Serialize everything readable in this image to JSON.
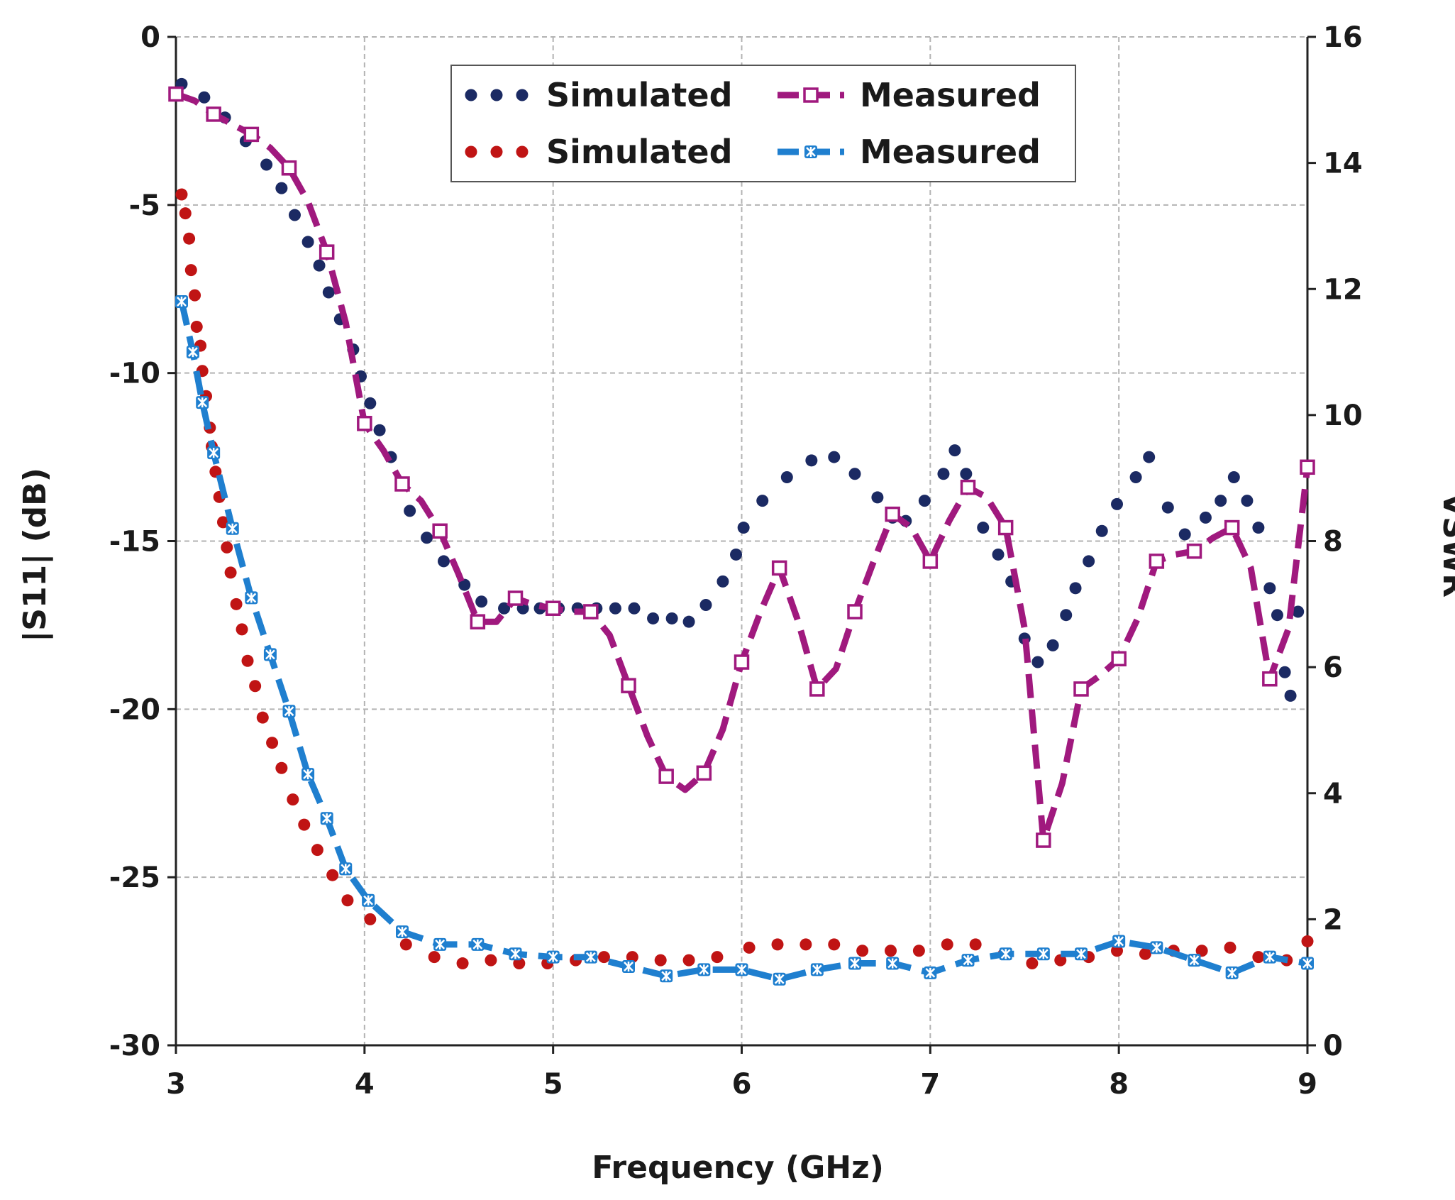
{
  "chart_data": {
    "type": "line",
    "title": "",
    "xlabel": "Frequency (GHz)",
    "ylabel": "|S11| (dB)",
    "y2label": "VSWR",
    "xlim": [
      3,
      9
    ],
    "ylim": [
      -30,
      0
    ],
    "y2lim": [
      0,
      16
    ],
    "xticks": [
      "3",
      "4",
      "5",
      "6",
      "7",
      "8",
      "9"
    ],
    "yticks": [
      "0",
      "-5",
      "-10",
      "-15",
      "-20",
      "-25",
      "-30"
    ],
    "y2ticks": [
      "16",
      "14",
      "12",
      "10",
      "8",
      "6",
      "4",
      "2",
      "0"
    ],
    "grid": true,
    "legend_position": "top-center",
    "series": [
      {
        "name": "Simulated",
        "axis": "left",
        "style": "dots",
        "color": "#1b2a63",
        "x": [
          3.03,
          3.15,
          3.26,
          3.37,
          3.48,
          3.56,
          3.63,
          3.7,
          3.76,
          3.81,
          3.87,
          3.94,
          3.98,
          4.03,
          4.08,
          4.14,
          4.24,
          4.33,
          4.42,
          4.53,
          4.62,
          4.74,
          4.84,
          4.93,
          5.03,
          5.13,
          5.23,
          5.33,
          5.43,
          5.53,
          5.63,
          5.72,
          5.81,
          5.9,
          5.97,
          6.01,
          6.11,
          6.24,
          6.37,
          6.49,
          6.6,
          6.72,
          6.8,
          6.87,
          6.97,
          7.07,
          7.13,
          7.19,
          7.28,
          7.36,
          7.43,
          7.5,
          7.57,
          7.65,
          7.72,
          7.77,
          7.84,
          7.91,
          7.99,
          8.09,
          8.16,
          8.26,
          8.35,
          8.46,
          8.54,
          8.61,
          8.68,
          8.74,
          8.8,
          8.84,
          8.88,
          8.91,
          8.95
        ],
        "y": [
          -1.4,
          -1.8,
          -2.4,
          -3.1,
          -3.8,
          -4.5,
          -5.3,
          -6.1,
          -6.8,
          -7.6,
          -8.4,
          -9.3,
          -10.1,
          -10.9,
          -11.7,
          -12.5,
          -14.1,
          -14.9,
          -15.6,
          -16.3,
          -16.8,
          -17.0,
          -17.0,
          -17.0,
          -17.0,
          -17.0,
          -17.0,
          -17.0,
          -17.0,
          -17.3,
          -17.3,
          -17.4,
          -16.9,
          -16.2,
          -15.4,
          -14.6,
          -13.8,
          -13.1,
          -12.6,
          -12.5,
          -13.0,
          -13.7,
          -14.3,
          -14.4,
          -13.8,
          -13.0,
          -12.3,
          -13.0,
          -14.6,
          -15.4,
          -16.2,
          -17.9,
          -18.6,
          -18.1,
          -17.2,
          -16.4,
          -15.6,
          -14.7,
          -13.9,
          -13.1,
          -12.5,
          -14.0,
          -14.8,
          -14.3,
          -13.8,
          -13.1,
          -13.8,
          -14.6,
          -16.4,
          -17.2,
          -18.9,
          -19.6,
          -17.1
        ]
      },
      {
        "name": "Measured",
        "axis": "left",
        "style": "dashed-square",
        "color": "#a0197e",
        "x": [
          3.0,
          3.1,
          3.2,
          3.3,
          3.4,
          3.5,
          3.6,
          3.7,
          3.8,
          3.9,
          4.0,
          4.1,
          4.2,
          4.3,
          4.4,
          4.5,
          4.6,
          4.7,
          4.8,
          4.9,
          5.0,
          5.1,
          5.2,
          5.3,
          5.4,
          5.5,
          5.6,
          5.7,
          5.8,
          5.9,
          6.0,
          6.1,
          6.2,
          6.3,
          6.4,
          6.5,
          6.6,
          6.7,
          6.8,
          6.9,
          7.0,
          7.1,
          7.2,
          7.3,
          7.4,
          7.5,
          7.6,
          7.7,
          7.8,
          7.9,
          8.0,
          8.1,
          8.2,
          8.3,
          8.4,
          8.5,
          8.6,
          8.7,
          8.8,
          8.9,
          9.0
        ],
        "y": [
          -1.7,
          -1.9,
          -2.3,
          -2.6,
          -2.9,
          -3.3,
          -3.9,
          -4.9,
          -6.4,
          -8.5,
          -11.5,
          -12.3,
          -13.3,
          -13.8,
          -14.7,
          -16.0,
          -17.4,
          -17.4,
          -16.7,
          -16.9,
          -17.0,
          -17.1,
          -17.1,
          -17.8,
          -19.3,
          -20.8,
          -22.0,
          -22.4,
          -21.9,
          -20.6,
          -18.6,
          -17.1,
          -15.8,
          -17.4,
          -19.4,
          -18.8,
          -17.1,
          -15.6,
          -14.2,
          -14.6,
          -15.6,
          -14.4,
          -13.4,
          -13.7,
          -14.6,
          -17.6,
          -23.9,
          -22.2,
          -19.4,
          -19.0,
          -18.5,
          -17.3,
          -15.6,
          -15.4,
          -15.3,
          -14.9,
          -14.6,
          -15.8,
          -19.1,
          -17.6,
          -12.8
        ]
      },
      {
        "name": "Simulated",
        "axis": "right",
        "style": "dots",
        "color": "#c01414",
        "x": [
          3.03,
          3.05,
          3.07,
          3.08,
          3.1,
          3.11,
          3.13,
          3.14,
          3.16,
          3.18,
          3.19,
          3.21,
          3.23,
          3.25,
          3.27,
          3.29,
          3.32,
          3.35,
          3.38,
          3.42,
          3.46,
          3.51,
          3.56,
          3.62,
          3.68,
          3.75,
          3.83,
          3.91,
          4.03,
          4.22,
          4.37,
          4.52,
          4.67,
          4.82,
          4.97,
          5.12,
          5.27,
          5.42,
          5.57,
          5.72,
          5.87,
          6.04,
          6.19,
          6.34,
          6.49,
          6.64,
          6.79,
          6.94,
          7.09,
          7.24,
          7.39,
          7.54,
          7.69,
          7.84,
          7.99,
          8.14,
          8.29,
          8.44,
          8.59,
          8.74,
          8.89,
          9.0
        ],
        "y": [
          13.5,
          13.2,
          12.8,
          12.3,
          11.9,
          11.4,
          11.1,
          10.7,
          10.3,
          9.8,
          9.5,
          9.1,
          8.7,
          8.3,
          7.9,
          7.5,
          7.0,
          6.6,
          6.1,
          5.7,
          5.2,
          4.8,
          4.4,
          3.9,
          3.5,
          3.1,
          2.7,
          2.3,
          2.0,
          1.6,
          1.4,
          1.3,
          1.35,
          1.3,
          1.3,
          1.35,
          1.4,
          1.4,
          1.35,
          1.35,
          1.4,
          1.55,
          1.6,
          1.6,
          1.6,
          1.5,
          1.5,
          1.5,
          1.6,
          1.6,
          1.45,
          1.3,
          1.35,
          1.4,
          1.5,
          1.45,
          1.5,
          1.5,
          1.55,
          1.4,
          1.35,
          1.65
        ]
      },
      {
        "name": "Measured",
        "axis": "right",
        "style": "dashed-star",
        "color": "#1f7fcf",
        "x": [
          3.03,
          3.09,
          3.14,
          3.2,
          3.3,
          3.4,
          3.5,
          3.6,
          3.7,
          3.8,
          3.9,
          4.02,
          4.2,
          4.4,
          4.6,
          4.8,
          5.0,
          5.2,
          5.4,
          5.6,
          5.8,
          6.0,
          6.2,
          6.4,
          6.6,
          6.8,
          7.0,
          7.2,
          7.4,
          7.6,
          7.8,
          8.0,
          8.2,
          8.4,
          8.6,
          8.8,
          9.0
        ],
        "y": [
          11.8,
          11.0,
          10.2,
          9.4,
          8.2,
          7.1,
          6.2,
          5.3,
          4.3,
          3.6,
          2.8,
          2.3,
          1.8,
          1.6,
          1.6,
          1.45,
          1.4,
          1.4,
          1.25,
          1.1,
          1.2,
          1.2,
          1.05,
          1.2,
          1.3,
          1.3,
          1.15,
          1.35,
          1.45,
          1.45,
          1.45,
          1.65,
          1.55,
          1.35,
          1.15,
          1.4,
          1.3
        ]
      }
    ],
    "legend": [
      {
        "label": "Simulated",
        "style": "dots",
        "color": "#1b2a63"
      },
      {
        "label": "Measured",
        "style": "dashed-square",
        "color": "#a0197e"
      },
      {
        "label": "Simulated",
        "style": "dots",
        "color": "#c01414"
      },
      {
        "label": "Measured",
        "style": "dashed-star",
        "color": "#1f7fcf"
      }
    ]
  }
}
